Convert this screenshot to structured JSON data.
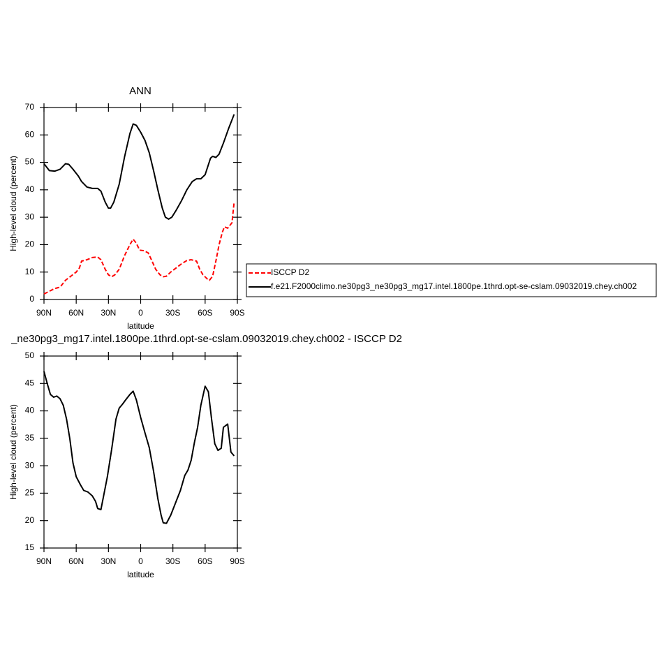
{
  "chart_data": [
    {
      "type": "line",
      "title": "ANN",
      "x_label": "latitude",
      "y_label": "High-level cloud (percent)",
      "xlim": [
        90,
        -90
      ],
      "xticks": [
        {
          "value": 90,
          "label": "90N"
        },
        {
          "value": 60,
          "label": "60N"
        },
        {
          "value": 30,
          "label": "30N"
        },
        0,
        {
          "value": -30,
          "label": "30S"
        },
        {
          "value": -60,
          "label": "60S"
        },
        {
          "value": -90,
          "label": "90S"
        }
      ],
      "ylim": [
        0,
        70
      ],
      "yticks": [
        0,
        10,
        20,
        30,
        40,
        50,
        60,
        70
      ],
      "legend": "right",
      "series": [
        {
          "name": "ISCCP D2",
          "color": "#ff0000",
          "line_style": "dashed",
          "x": [
            90,
            85,
            80,
            75,
            70,
            65,
            60,
            57,
            55,
            50,
            45,
            40,
            37,
            33,
            30,
            27,
            24,
            20,
            15,
            10,
            7,
            4,
            1,
            -3,
            -7,
            -10,
            -14,
            -18,
            -21,
            -24,
            -28,
            -33,
            -38,
            -43,
            -47,
            -52,
            -55,
            -58,
            -62,
            -64,
            -67,
            -70,
            -73,
            -76,
            -78,
            -81,
            -83,
            -85,
            -87
          ],
          "values": [
            2,
            3,
            4,
            4.5,
            7,
            8.5,
            10,
            11.5,
            14,
            14.5,
            15.3,
            15.5,
            14.5,
            11,
            9,
            8.3,
            9,
            11,
            16,
            20,
            22,
            20.5,
            18,
            17.8,
            17,
            14.5,
            11,
            9,
            8.3,
            8.5,
            10,
            11.5,
            13,
            14.2,
            14.5,
            14,
            11,
            9,
            7.5,
            7,
            8.5,
            14,
            20,
            24.5,
            26.5,
            26,
            27,
            28,
            35.5
          ]
        },
        {
          "name": "f.e21.F2000climo.ne30pg3_ne30pg3_mg17.intel.1800pe.1thrd.opt-se-cslam.09032019.chey.ch002",
          "color": "#000000",
          "line_style": "solid",
          "x": [
            90,
            85,
            80,
            75,
            70,
            67,
            63,
            58,
            55,
            50,
            45,
            40,
            37,
            33,
            30,
            28,
            25,
            20,
            15,
            10,
            7,
            4,
            0,
            -4,
            -8,
            -12,
            -16,
            -20,
            -23,
            -26,
            -29,
            -33,
            -38,
            -43,
            -48,
            -52,
            -56,
            -60,
            -65,
            -67,
            -70,
            -73,
            -77,
            -82,
            -87
          ],
          "values": [
            49.5,
            47,
            46.8,
            47.5,
            49.5,
            49.3,
            47.5,
            45,
            43,
            41,
            40.5,
            40.5,
            39.5,
            35.5,
            33.3,
            33.3,
            35.5,
            42,
            52,
            60.5,
            64,
            63.5,
            61,
            58,
            53.5,
            47,
            40,
            33.5,
            30,
            29.3,
            30,
            32.5,
            36,
            40,
            43,
            44,
            44,
            45.5,
            51.5,
            52.2,
            51.8,
            53,
            57,
            62.5,
            67.5
          ]
        }
      ]
    },
    {
      "type": "line",
      "title": "_ne30pg3_mg17.intel.1800pe.1thrd.opt-se-cslam.09032019.chey.ch002 - ISCCP D2",
      "x_label": "latitude",
      "y_label": "High-level cloud (percent)",
      "xlim": [
        90,
        -90
      ],
      "xticks": [
        {
          "value": 90,
          "label": "90N"
        },
        {
          "value": 60,
          "label": "60N"
        },
        {
          "value": 30,
          "label": "30N"
        },
        0,
        {
          "value": -30,
          "label": "30S"
        },
        {
          "value": -60,
          "label": "60S"
        },
        {
          "value": -90,
          "label": "90S"
        }
      ],
      "ylim": [
        15,
        50
      ],
      "yticks": [
        15,
        20,
        25,
        30,
        35,
        40,
        45,
        50
      ],
      "series": [
        {
          "color": "#000000",
          "line_style": "solid",
          "x": [
            90,
            87,
            84,
            81,
            78,
            75,
            72,
            69,
            66,
            63,
            60,
            56,
            53,
            49,
            45,
            42,
            40,
            37,
            35,
            31,
            27,
            23,
            20,
            17,
            14,
            10,
            7,
            4,
            0,
            -4,
            -8,
            -12,
            -16,
            -19,
            -21,
            -24,
            -28,
            -33,
            -37,
            -41,
            -44,
            -47,
            -50,
            -53,
            -56,
            -60,
            -63,
            -66,
            -69,
            -72,
            -75,
            -77,
            -81,
            -84,
            -87
          ],
          "values": [
            47.2,
            45,
            43,
            42.5,
            42.7,
            42.2,
            41,
            38.5,
            35,
            30.5,
            28,
            26.5,
            25.5,
            25.2,
            24.5,
            23.5,
            22.2,
            22,
            24,
            28,
            33,
            38.5,
            40.5,
            41.2,
            42,
            43,
            43.6,
            42,
            38.8,
            36,
            33.3,
            29,
            24,
            21,
            19.6,
            19.5,
            21,
            23.5,
            25.5,
            28.2,
            29.2,
            31,
            34.2,
            37,
            41,
            44.5,
            43.5,
            38.5,
            34,
            32.8,
            33.2,
            37,
            37.6,
            32.5,
            31.8
          ]
        }
      ]
    }
  ]
}
